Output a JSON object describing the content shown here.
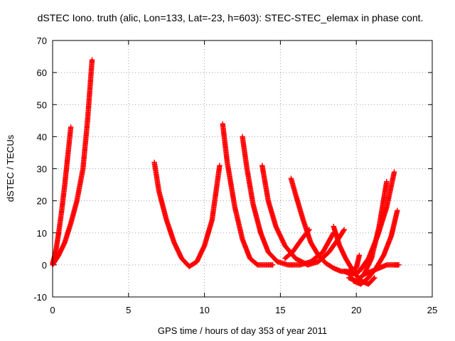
{
  "chart_data": {
    "type": "scatter",
    "title": "dSTEC Iono. truth (alic, Lon=133, Lat=-23, h=603): STEC-STEC_elemax in phase cont.",
    "xlabel": "GPS time / hours of day 353 of year 2011",
    "ylabel": "dSTEC  / TECUs",
    "xlim": [
      0,
      25
    ],
    "ylim": [
      -10,
      70
    ],
    "xticks": [
      "0",
      "5",
      "10",
      "15",
      "20",
      "25"
    ],
    "yticks": [
      "-10",
      "0",
      "10",
      "20",
      "30",
      "40",
      "50",
      "60",
      "70"
    ],
    "grid": true,
    "legend": "none",
    "marker": "plus",
    "color": "#ff0000",
    "series": [
      {
        "x": [
          0.0,
          0.2,
          0.4,
          0.6,
          0.8,
          1.0,
          1.2
        ],
        "y": [
          0.5,
          4,
          10,
          17,
          25,
          34,
          43
        ]
      },
      {
        "x": [
          0.0,
          0.4,
          0.8,
          1.2,
          1.6,
          2.0,
          2.3,
          2.6
        ],
        "y": [
          0,
          3,
          7,
          13,
          20,
          30,
          45,
          64
        ]
      },
      {
        "x": [
          6.7,
          7.0,
          7.5,
          8.0,
          8.5,
          9.0,
          9.5,
          10.0,
          10.5,
          11.0
        ],
        "y": [
          32,
          23,
          14,
          7,
          2,
          -0.5,
          1,
          6,
          14,
          31
        ]
      },
      {
        "x": [
          11.2,
          11.5,
          12.0,
          12.5,
          13.0,
          13.5,
          14.0,
          14.5
        ],
        "y": [
          44,
          32,
          18,
          8,
          2,
          0,
          0,
          0
        ]
      },
      {
        "x": [
          12.5,
          12.8,
          13.2,
          13.7,
          14.2,
          14.8,
          15.5,
          16.3,
          17.0,
          17.8,
          18.5
        ],
        "y": [
          40,
          30,
          19,
          10,
          4,
          1,
          0,
          0,
          1,
          4,
          10
        ]
      },
      {
        "x": [
          13.8,
          14.2,
          14.7,
          15.3,
          16.0,
          16.8,
          17.5,
          18.2,
          18.8,
          19.2
        ],
        "y": [
          31,
          20,
          12,
          6,
          2,
          0,
          1,
          4,
          8,
          11
        ]
      },
      {
        "x": [
          15.7,
          16.0,
          16.5,
          17.0,
          17.5,
          18.0,
          18.5,
          19.0,
          19.5,
          20.0,
          20.2
        ],
        "y": [
          27,
          22,
          14,
          7,
          3,
          0.5,
          -1,
          -2,
          -2,
          -1,
          3
        ]
      },
      {
        "x": [
          15.3,
          15.8,
          16.4,
          16.9
        ],
        "y": [
          2,
          4,
          8,
          11
        ]
      },
      {
        "x": [
          18.5,
          18.9,
          19.3,
          19.8,
          20.3,
          20.8,
          21.2
        ],
        "y": [
          12,
          6,
          2,
          -2,
          -5,
          -6,
          -4
        ]
      },
      {
        "x": [
          19.2,
          19.7,
          20.2,
          20.8,
          21.4,
          22.0,
          22.5
        ],
        "y": [
          -2,
          -3,
          -2,
          2,
          9,
          18,
          29
        ]
      },
      {
        "x": [
          19.5,
          20.0,
          20.5,
          21.0,
          21.5,
          22.0
        ],
        "y": [
          -4,
          -5,
          -3,
          2,
          12,
          26
        ]
      },
      {
        "x": [
          19.8,
          20.3,
          20.8,
          21.3,
          21.8,
          22.3,
          22.7
        ],
        "y": [
          -5,
          -6,
          -4,
          -1,
          3,
          9,
          17
        ]
      },
      {
        "x": [
          20.5,
          21.0,
          21.5,
          22.0,
          22.5,
          22.8
        ],
        "y": [
          -3,
          -2,
          -1,
          0,
          0,
          0
        ]
      }
    ]
  }
}
